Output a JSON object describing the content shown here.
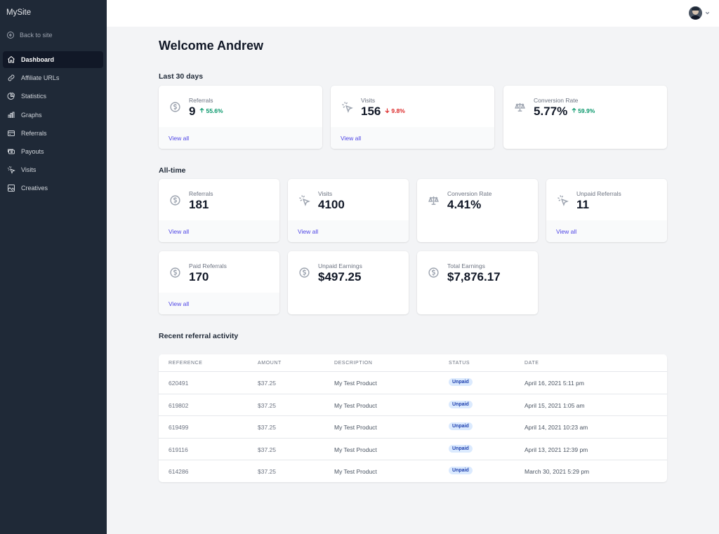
{
  "sidebar": {
    "brand": "MySite",
    "back_label": "Back to site",
    "items": [
      {
        "label": "Dashboard",
        "icon": "home-icon"
      },
      {
        "label": "Affiliate URLs",
        "icon": "link-icon"
      },
      {
        "label": "Statistics",
        "icon": "pie-chart-icon"
      },
      {
        "label": "Graphs",
        "icon": "bar-chart-icon"
      },
      {
        "label": "Referrals",
        "icon": "credit-card-icon"
      },
      {
        "label": "Payouts",
        "icon": "cash-icon"
      },
      {
        "label": "Visits",
        "icon": "cursor-click-icon"
      },
      {
        "label": "Creatives",
        "icon": "photo-icon"
      }
    ]
  },
  "header": {
    "avatar": "user-avatar",
    "menu_icon": "chevron-down-icon"
  },
  "main": {
    "title": "Welcome Andrew",
    "last30": {
      "heading": "Last 30 days",
      "referrals": {
        "label": "Referrals",
        "value": "9",
        "change": "55.6%",
        "link": "View all"
      },
      "visits": {
        "label": "Visits",
        "value": "156",
        "change": "9.8%",
        "link": "View all"
      },
      "conversion": {
        "label": "Conversion Rate",
        "value": "5.77%",
        "change": "59.9%"
      }
    },
    "alltime": {
      "heading": "All-time",
      "referrals": {
        "label": "Referrals",
        "value": "181",
        "link": "View all"
      },
      "visits": {
        "label": "Visits",
        "value": "4100",
        "link": "View all"
      },
      "conversion": {
        "label": "Conversion Rate",
        "value": "4.41%"
      },
      "unpaid_referrals": {
        "label": "Unpaid Referrals",
        "value": "11",
        "link": "View all"
      },
      "paid_referrals": {
        "label": "Paid Referrals",
        "value": "170",
        "link": "View all"
      },
      "unpaid_earnings": {
        "label": "Unpaid Earnings",
        "value": "$497.25"
      },
      "total_earnings": {
        "label": "Total Earnings",
        "value": "$7,876.17"
      }
    },
    "recent": {
      "heading": "Recent referral activity",
      "columns": [
        "REFERENCE",
        "AMOUNT",
        "DESCRIPTION",
        "STATUS",
        "DATE"
      ],
      "rows": [
        {
          "reference": "620491",
          "amount": "$37.25",
          "description": "My Test Product",
          "status": "Unpaid",
          "date": "April 16, 2021 5:11 pm"
        },
        {
          "reference": "619802",
          "amount": "$37.25",
          "description": "My Test Product",
          "status": "Unpaid",
          "date": "April 15, 2021 1:05 am"
        },
        {
          "reference": "619499",
          "amount": "$37.25",
          "description": "My Test Product",
          "status": "Unpaid",
          "date": "April 14, 2021 10:23 am"
        },
        {
          "reference": "619116",
          "amount": "$37.25",
          "description": "My Test Product",
          "status": "Unpaid",
          "date": "April 13, 2021 12:39 pm"
        },
        {
          "reference": "614286",
          "amount": "$37.25",
          "description": "My Test Product",
          "status": "Unpaid",
          "date": "March 30, 2021 5:29 pm"
        }
      ]
    }
  },
  "colors": {
    "sidebar_bg": "#1f2937",
    "accent": "#4f46e5",
    "up": "#059669",
    "down": "#dc2626",
    "badge_bg": "#dbeafe"
  }
}
